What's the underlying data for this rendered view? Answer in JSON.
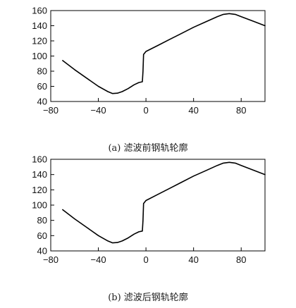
{
  "chart_data": [
    {
      "type": "line",
      "caption": "(a) 滤波前钢轨轮廓",
      "xlim": [
        -80,
        100
      ],
      "ylim": [
        40,
        160
      ],
      "x_ticks": [
        -80,
        -40,
        0,
        40,
        80
      ],
      "y_ticks": [
        40,
        60,
        80,
        100,
        120,
        140,
        160
      ],
      "grid": false,
      "series": [
        {
          "x": [
            -70,
            -60,
            -50,
            -40,
            -32,
            -28,
            -24,
            -20,
            -15,
            -10,
            -6,
            -3,
            -2.5,
            -2,
            0,
            10,
            20,
            30,
            40,
            50,
            60,
            65,
            70,
            75,
            80,
            90,
            100
          ],
          "y": [
            94,
            82,
            71,
            60,
            53,
            50.5,
            51,
            53,
            57,
            62,
            65,
            66,
            80,
            102,
            106,
            114,
            122,
            130,
            138,
            145,
            152,
            155,
            156,
            155,
            152,
            146,
            140
          ]
        }
      ]
    },
    {
      "type": "line",
      "caption": "(b) 滤波后钢轨轮廓",
      "xlim": [
        -80,
        100
      ],
      "ylim": [
        40,
        160
      ],
      "x_ticks": [
        -80,
        -40,
        0,
        40,
        80
      ],
      "y_ticks": [
        40,
        60,
        80,
        100,
        120,
        140,
        160
      ],
      "grid": false,
      "series": [
        {
          "x": [
            -70,
            -60,
            -50,
            -40,
            -32,
            -28,
            -24,
            -20,
            -15,
            -10,
            -6,
            -3,
            -2.5,
            -2,
            0,
            10,
            20,
            30,
            40,
            50,
            60,
            65,
            70,
            75,
            80,
            90,
            100
          ],
          "y": [
            94,
            82,
            71,
            60,
            53,
            50.5,
            51,
            53,
            57,
            62,
            65,
            66,
            80,
            102,
            106,
            114,
            122,
            130,
            138,
            145,
            152,
            155,
            156,
            155,
            152,
            146,
            140
          ]
        }
      ]
    }
  ]
}
